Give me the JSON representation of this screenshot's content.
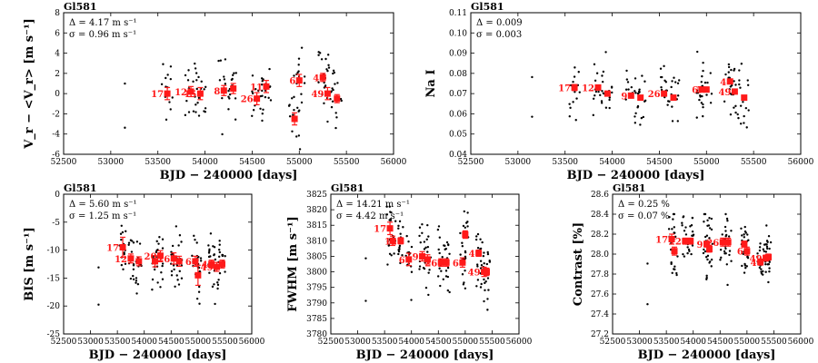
{
  "chart_data": [
    {
      "id": "rv",
      "type": "scatter",
      "title": "Gl581",
      "xlabel": "BJD − 240000 [days]",
      "ylabel": "V_r − <V_r> [m s⁻¹]",
      "xlim": [
        52500,
        56000
      ],
      "ylim": [
        -6,
        8
      ],
      "xticks": [
        52500,
        53000,
        53500,
        54000,
        54500,
        55000,
        55500,
        56000
      ],
      "yticks": [
        -6,
        -4,
        -2,
        0,
        2,
        4,
        6,
        8
      ],
      "annotations": [
        "Δ = 4.17 m s⁻¹",
        "σ = 0.96 m s⁻¹"
      ],
      "binned": {
        "name": "Binned seasons",
        "x": [
          53600,
          53850,
          53950,
          54200,
          54300,
          54550,
          54650,
          54950,
          55000,
          55250,
          55300,
          55400
        ],
        "y": [
          0.0,
          0.2,
          0.0,
          0.3,
          0.5,
          -0.5,
          0.7,
          -2.5,
          1.3,
          1.6,
          0.0,
          -0.5
        ],
        "err": [
          0.6,
          0.5,
          0.6,
          0.5,
          0.5,
          0.6,
          0.6,
          0.6,
          0.6,
          0.4,
          0.6,
          0.4
        ],
        "labels": [
          "17",
          "12",
          "15",
          "8",
          "",
          "26",
          "11",
          "",
          "6",
          "4",
          "49",
          ""
        ]
      },
      "scatter_seed": 1,
      "scatter_range": [
        -5.5,
        6.3
      ]
    },
    {
      "id": "nai",
      "type": "scatter",
      "title": "Gl581",
      "xlabel": "BJD − 240000 [days]",
      "ylabel": "Na I",
      "xlim": [
        52500,
        56000
      ],
      "ylim": [
        0.04,
        0.11
      ],
      "xticks": [
        52500,
        53000,
        53500,
        54000,
        54500,
        55000,
        55500,
        56000
      ],
      "yticks": [
        0.04,
        0.05,
        0.06,
        0.07,
        0.08,
        0.09,
        0.1,
        0.11
      ],
      "annotations": [
        "Δ = 0.009",
        "σ = 0.003"
      ],
      "binned": {
        "name": "Binned seasons",
        "x": [
          53600,
          53850,
          53950,
          54200,
          54300,
          54550,
          54650,
          54950,
          55000,
          55250,
          55300,
          55400
        ],
        "y": [
          0.073,
          0.073,
          0.07,
          0.069,
          0.068,
          0.07,
          0.068,
          0.072,
          0.072,
          0.076,
          0.071,
          0.068
        ],
        "err": [
          0.0015,
          0.001,
          0.001,
          0.001,
          0.001,
          0.001,
          0.001,
          0.001,
          0.0012,
          0.001,
          0.001,
          0.001
        ],
        "labels": [
          "17",
          "12",
          "",
          "9",
          "",
          "26",
          "",
          "6",
          "5",
          "4",
          "49",
          ""
        ]
      },
      "scatter_seed": 2,
      "scatter_range": [
        0.049,
        0.102
      ]
    },
    {
      "id": "bis",
      "type": "scatter",
      "title": "Gl581",
      "xlabel": "BJD − 240000 [days]",
      "ylabel": "BIS [m s⁻¹]",
      "xlim": [
        52500,
        56000
      ],
      "ylim": [
        -25,
        0
      ],
      "xticks": [
        52500,
        53000,
        53500,
        54000,
        54500,
        55000,
        55500,
        56000
      ],
      "yticks": [
        -25,
        -20,
        -15,
        -10,
        -5,
        0
      ],
      "annotations": [
        "Δ = 5.60 m s⁻¹",
        "σ = 1.25 m s⁻¹"
      ],
      "binned": {
        "name": "Binned seasons",
        "x": [
          53600,
          53750,
          53900,
          54200,
          54300,
          54550,
          54650,
          54950,
          55000,
          55250,
          55350,
          55450
        ],
        "y": [
          -9.5,
          -11.5,
          -12.0,
          -12.0,
          -11.0,
          -11.5,
          -12.0,
          -12.0,
          -14.5,
          -12.5,
          -13.0,
          -12.5
        ],
        "err": [
          1.8,
          0.8,
          0.8,
          1.0,
          0.9,
          1.0,
          0.9,
          0.9,
          1.8,
          0.7,
          0.8,
          0.7
        ],
        "labels": [
          "17",
          "12",
          "",
          "",
          "20",
          "26",
          "",
          "6",
          "",
          "4",
          "49",
          ""
        ]
      },
      "scatter_seed": 3,
      "scatter_range": [
        -23,
        -5
      ]
    },
    {
      "id": "fwhm",
      "type": "scatter",
      "title": "Gl581",
      "xlabel": "BJD − 240000 [days]",
      "ylabel": "FWHM [m s⁻¹]",
      "xlim": [
        52500,
        56000
      ],
      "ylim": [
        3780,
        3825
      ],
      "xticks": [
        52500,
        53000,
        53500,
        54000,
        54500,
        55000,
        55500,
        56000
      ],
      "yticks": [
        3780,
        3785,
        3790,
        3795,
        3800,
        3805,
        3810,
        3815,
        3820,
        3825
      ],
      "annotations": [
        "Δ = 14.21 m s⁻¹",
        "σ = 4.42 m s⁻¹"
      ],
      "binned": {
        "name": "Binned seasons",
        "x": [
          53600,
          53650,
          53800,
          53950,
          54200,
          54300,
          54550,
          54650,
          54950,
          55000,
          55250,
          55350,
          55400
        ],
        "y": [
          3814,
          3810,
          3810,
          3804,
          3805,
          3804,
          3803,
          3803,
          3803,
          3812,
          3806,
          3800,
          3800
        ],
        "err": [
          2.0,
          1.5,
          1.0,
          2.0,
          1.5,
          1.5,
          1.2,
          1.2,
          1.5,
          1.2,
          1.0,
          1.5,
          1.2
        ],
        "labels": [
          "17",
          "",
          "12",
          "6",
          "9",
          "",
          "26",
          "",
          "6",
          "",
          "4",
          "49",
          ""
        ]
      },
      "scatter_seed": 4,
      "scatter_range": [
        3784,
        3821
      ]
    },
    {
      "id": "contrast",
      "type": "scatter",
      "title": "Gl581",
      "xlabel": "BJD − 240000 [days]",
      "ylabel": "Contrast [%]",
      "xlim": [
        52500,
        56000
      ],
      "ylim": [
        27.2,
        28.6
      ],
      "xticks": [
        52500,
        53000,
        53500,
        54000,
        54500,
        55000,
        55500,
        56000
      ],
      "yticks": [
        27.2,
        27.4,
        27.6,
        27.8,
        28.0,
        28.2,
        28.4,
        28.6
      ],
      "annotations": [
        "Δ = 0.25 %",
        "σ = 0.07 %"
      ],
      "binned": {
        "name": "Binned seasons",
        "x": [
          53600,
          53650,
          53850,
          53950,
          54250,
          54300,
          54550,
          54650,
          54950,
          55000,
          55250,
          55350,
          55400
        ],
        "y": [
          28.15,
          28.03,
          28.13,
          28.13,
          28.1,
          28.05,
          28.12,
          28.12,
          28.1,
          28.03,
          27.92,
          27.96,
          27.97
        ],
        "err": [
          0.05,
          0.04,
          0.03,
          0.03,
          0.03,
          0.03,
          0.04,
          0.04,
          0.03,
          0.04,
          0.03,
          0.03,
          0.03
        ],
        "labels": [
          "17",
          "",
          "12",
          "",
          "9",
          "",
          "26",
          "",
          "",
          "6",
          "4",
          "49",
          ""
        ]
      },
      "scatter_seed": 5,
      "scatter_range": [
        27.3,
        28.4
      ]
    }
  ]
}
